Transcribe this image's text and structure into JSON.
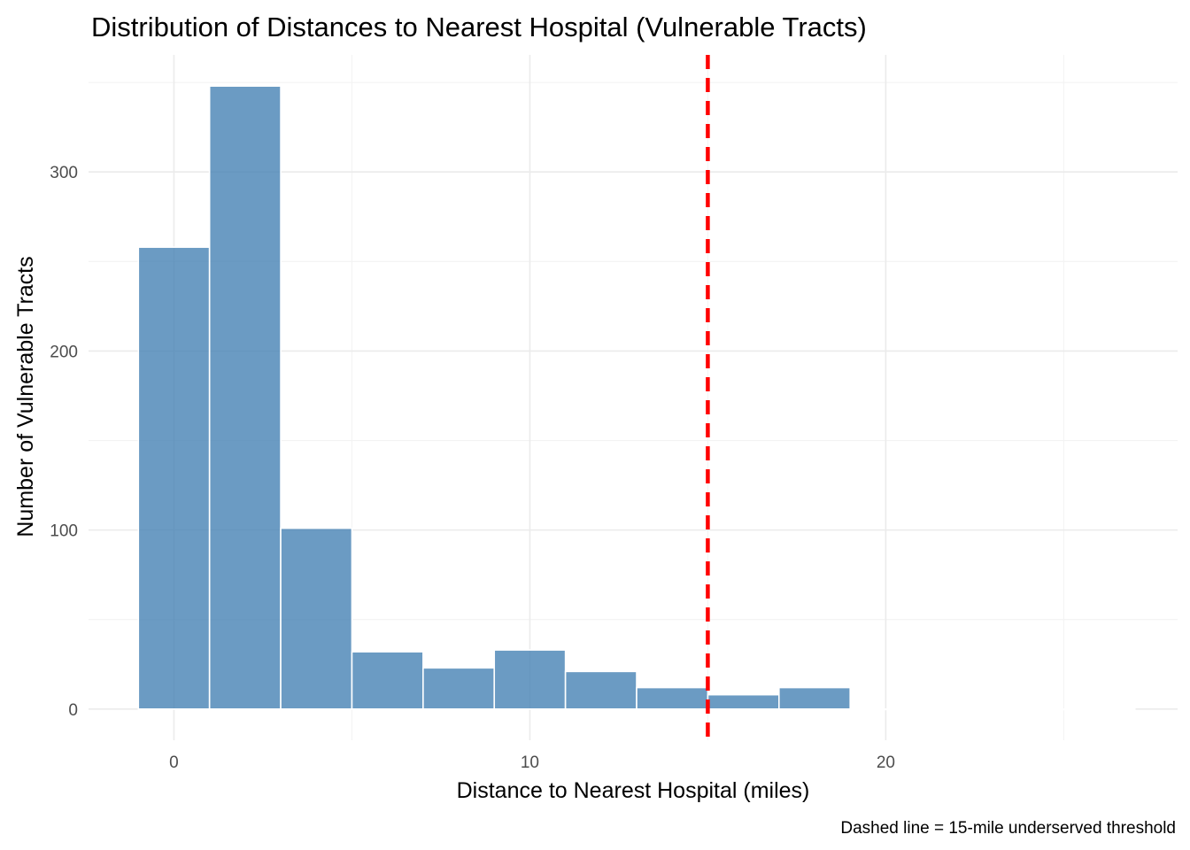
{
  "chart_data": {
    "type": "bar",
    "title": "Distribution of Distances to Nearest Hospital (Vulnerable Tracts)",
    "xlabel": "Distance to Nearest Hospital (miles)",
    "ylabel": "Number of Vulnerable Tracts",
    "caption": "Dashed line = 15-mile underserved threshold",
    "bin_width": 2,
    "bins": [
      {
        "x_start": -1,
        "x_end": 1,
        "count": 258
      },
      {
        "x_start": 1,
        "x_end": 3,
        "count": 348
      },
      {
        "x_start": 3,
        "x_end": 5,
        "count": 101
      },
      {
        "x_start": 5,
        "x_end": 7,
        "count": 32
      },
      {
        "x_start": 7,
        "x_end": 9,
        "count": 23
      },
      {
        "x_start": 9,
        "x_end": 11,
        "count": 33
      },
      {
        "x_start": 11,
        "x_end": 13,
        "count": 21
      },
      {
        "x_start": 13,
        "x_end": 15,
        "count": 12
      },
      {
        "x_start": 15,
        "x_end": 17,
        "count": 8
      },
      {
        "x_start": 17,
        "x_end": 19,
        "count": 12
      },
      {
        "x_start": 19,
        "x_end": 21,
        "count": 0
      },
      {
        "x_start": 21,
        "x_end": 23,
        "count": 0
      },
      {
        "x_start": 23,
        "x_end": 25,
        "count": 0
      },
      {
        "x_start": 25,
        "x_end": 27,
        "count": 0
      }
    ],
    "xlim": [
      -2.4,
      28.2
    ],
    "ylim": [
      -17.4,
      365.4
    ],
    "x_ticks": [
      0,
      10,
      20
    ],
    "x_tick_labels": [
      "0",
      "10",
      "20"
    ],
    "y_ticks": [
      0,
      100,
      200,
      300
    ],
    "y_tick_labels": [
      "0",
      "100",
      "200",
      "300"
    ],
    "threshold": {
      "x": 15,
      "style": "dashed",
      "color": "#ff0000"
    },
    "bar_fill": "#4682b4",
    "bar_outline": "#ffffff",
    "grid": true,
    "legend": "none"
  }
}
